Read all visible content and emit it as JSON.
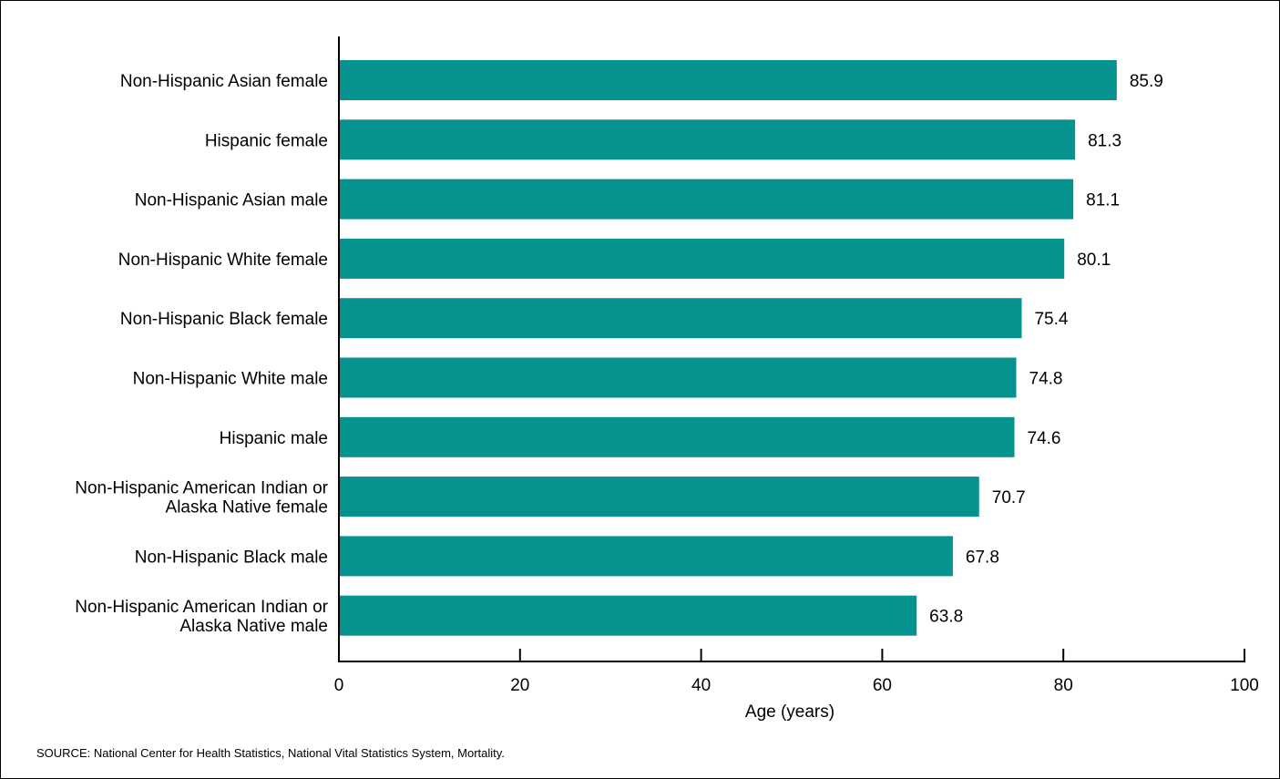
{
  "chart_data": {
    "type": "bar",
    "orientation": "horizontal",
    "categories": [
      "Non-Hispanic Asian female",
      "Hispanic female",
      "Non-Hispanic Asian male",
      "Non-Hispanic White female",
      "Non-Hispanic Black female",
      "Non-Hispanic White male",
      "Hispanic male",
      "Non-Hispanic American Indian or Alaska Native female",
      "Non-Hispanic Black male",
      "Non-Hispanic American Indian or Alaska Native male"
    ],
    "category_lines": [
      [
        "Non-Hispanic Asian female"
      ],
      [
        "Hispanic female"
      ],
      [
        "Non-Hispanic Asian male"
      ],
      [
        "Non-Hispanic White female"
      ],
      [
        "Non-Hispanic Black female"
      ],
      [
        "Non-Hispanic White male"
      ],
      [
        "Hispanic male"
      ],
      [
        "Non-Hispanic American Indian or",
        "Alaska Native female"
      ],
      [
        "Non-Hispanic Black male"
      ],
      [
        "Non-Hispanic American Indian or",
        "Alaska Native male"
      ]
    ],
    "values": [
      85.9,
      81.3,
      81.1,
      80.1,
      75.4,
      74.8,
      74.6,
      70.7,
      67.8,
      63.8
    ],
    "value_labels": [
      "85.9",
      "81.3",
      "81.1",
      "80.1",
      "75.4",
      "74.8",
      "74.6",
      "70.7",
      "67.8",
      "63.8"
    ],
    "xlabel": "Age (years)",
    "xlim": [
      0,
      100
    ],
    "xticks": [
      0,
      20,
      40,
      60,
      80,
      100
    ],
    "xtick_labels": [
      "0",
      "20",
      "40",
      "60",
      "80",
      "100"
    ],
    "grid": false,
    "bar_color": "#069390"
  },
  "source": "SOURCE: National Center for Health Statistics, National Vital Statistics System, Mortality."
}
